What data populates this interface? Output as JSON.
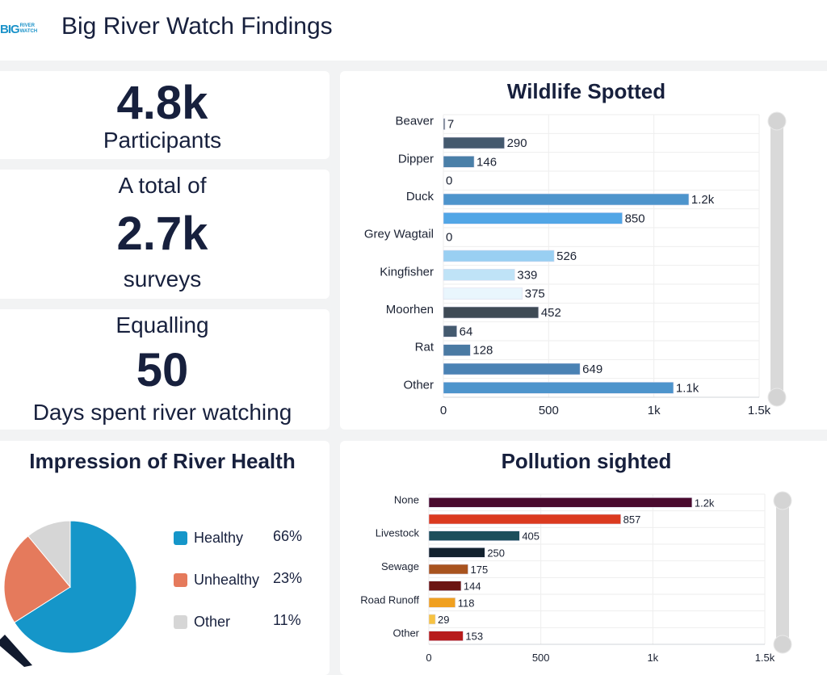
{
  "header": {
    "logo_big": "BIG",
    "logo_river": "RIVER",
    "logo_watch": "WATCH",
    "title": "Big River Watch Findings"
  },
  "kpis": {
    "participants_value": "4.8k",
    "participants_label": "Participants",
    "surveys_pre": "A total of",
    "surveys_value": "2.7k",
    "surveys_label": "surveys",
    "days_pre": "Equalling",
    "days_value": "50",
    "days_label": "Days spent river watching"
  },
  "chart_data": [
    {
      "type": "bar",
      "title": "Wildlife Spotted",
      "orientation": "horizontal",
      "xlim": [
        0,
        1500
      ],
      "xticks": [
        "0",
        "500",
        "1k",
        "1.5k"
      ],
      "labels": [
        "Beaver",
        "",
        "Dipper",
        "",
        "Duck",
        "",
        "Grey Wagtail",
        "",
        "Kingfisher",
        "",
        "Moorhen",
        "",
        "Rat",
        "",
        "Other"
      ],
      "values": [
        7,
        290,
        146,
        0,
        1166,
        850,
        0,
        526,
        339,
        375,
        452,
        64,
        128,
        649,
        1093
      ],
      "value_labels": [
        "7",
        "290",
        "146",
        "0",
        "1.2k",
        "850",
        "0",
        "526",
        "339",
        "375",
        "452",
        "64",
        "128",
        "649",
        "1.1k"
      ],
      "colors": [
        "#6b7785",
        "#44596e",
        "#4a7fa8",
        "#4a7fa8",
        "#4d94cc",
        "#52a6e6",
        "#99cff2",
        "#99cff2",
        "#bfe3f7",
        "#e9f6fd",
        "#3e4a55",
        "#445a6f",
        "#4a7aa3",
        "#4a82b4",
        "#4d94cc"
      ]
    },
    {
      "type": "bar",
      "title": "Pollution sighted",
      "orientation": "horizontal",
      "xlim": [
        0,
        1500
      ],
      "xticks": [
        "0",
        "500",
        "1k",
        "1.5k"
      ],
      "labels": [
        "None",
        "",
        "Livestock",
        "",
        "Sewage",
        "",
        "Road Runoff",
        "",
        "Other"
      ],
      "values": [
        1175,
        857,
        405,
        250,
        175,
        144,
        118,
        29,
        153
      ],
      "value_labels": [
        "1.2k",
        "857",
        "405",
        "250",
        "175",
        "144",
        "118",
        "29",
        "153"
      ],
      "colors": [
        "#4a0a2e",
        "#db3a1f",
        "#1d4e5c",
        "#13222f",
        "#a8531e",
        "#6b1512",
        "#f0a020",
        "#f7c242",
        "#b71c1c"
      ]
    },
    {
      "type": "pie",
      "title": "Impression of River Health",
      "slices": [
        {
          "label": "Healthy",
          "value": 66,
          "pct": "66%",
          "color": "#1596c9"
        },
        {
          "label": "Unhealthy",
          "value": 23,
          "pct": "23%",
          "color": "#e57a5c"
        },
        {
          "label": "Other",
          "value": 11,
          "pct": "11%",
          "color": "#d6d6d6"
        }
      ]
    }
  ]
}
